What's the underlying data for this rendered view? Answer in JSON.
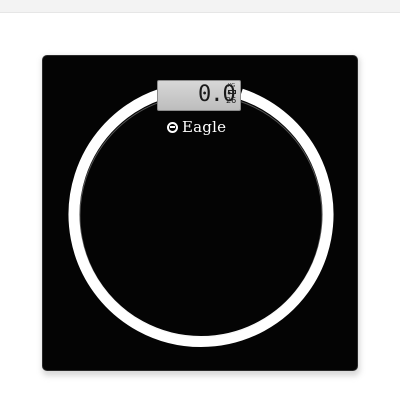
{
  "product": {
    "brand_name": "Eagle",
    "brand_logo_icon": "eagle-logo-icon"
  },
  "display": {
    "reading": "0.0",
    "unit": "KG",
    "temperature": "26",
    "battery_icon": "battery-icon"
  },
  "colors": {
    "scale_body": "#040404",
    "ring": "#ffffff",
    "lcd_background": "#c9c9c9",
    "background": "#ffffff"
  }
}
